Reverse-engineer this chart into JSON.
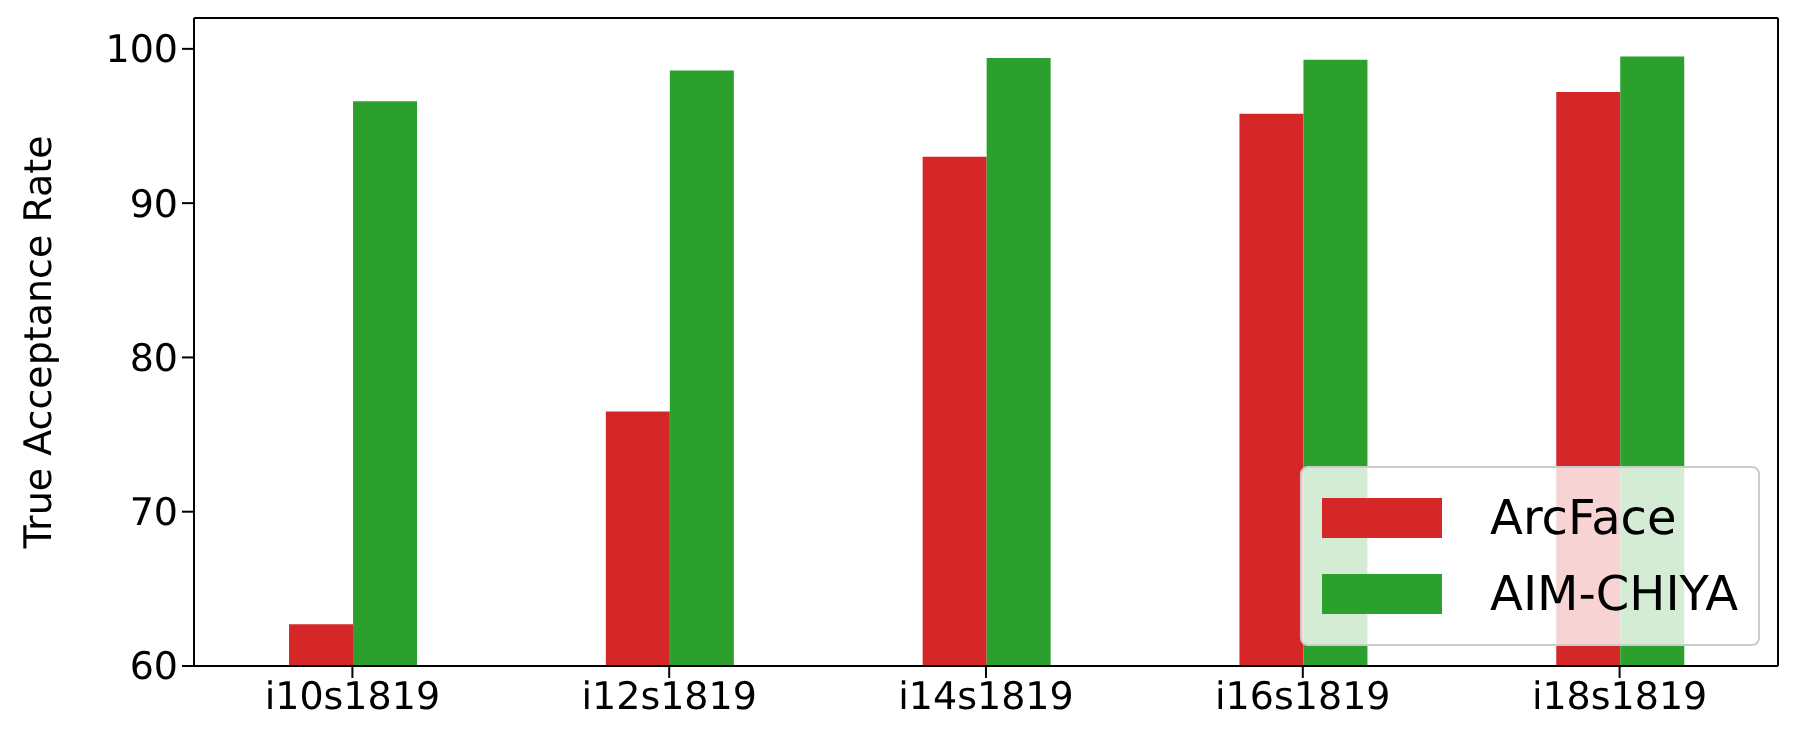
{
  "chart_data": {
    "type": "bar",
    "ylabel": "True Acceptance Rate",
    "categories": [
      "i10s1819",
      "i12s1819",
      "i14s1819",
      "i16s1819",
      "i18s1819"
    ],
    "series": [
      {
        "name": "ArcFace",
        "color": "#d62728",
        "values": [
          62.7,
          76.5,
          93.0,
          95.8,
          97.2
        ]
      },
      {
        "name": "AIM-CHIYA",
        "color": "#2ca02c",
        "values": [
          96.6,
          98.6,
          99.4,
          99.3,
          99.5
        ]
      }
    ],
    "ylim": [
      60,
      102
    ],
    "yticks": [
      60,
      70,
      80,
      90,
      100
    ],
    "grid": false,
    "legend": "bottom right"
  }
}
